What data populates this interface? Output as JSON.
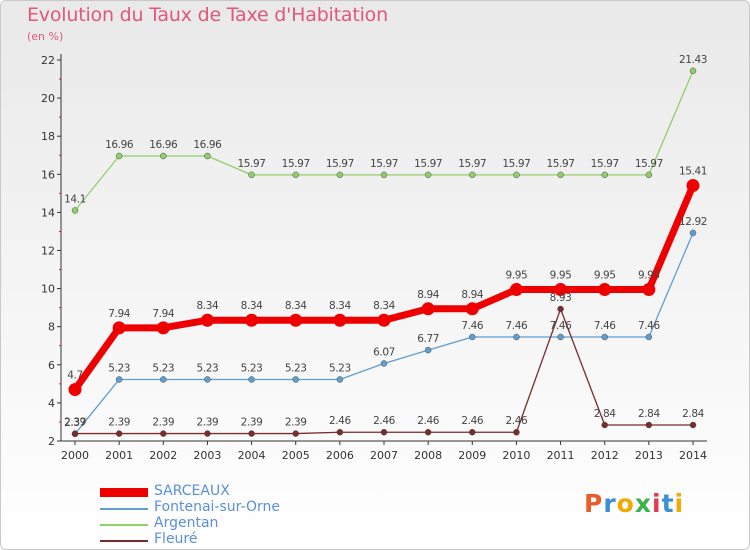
{
  "header": {
    "title": "Evolution du Taux de Taxe d'Habitation",
    "subtitle": "(en %)"
  },
  "logo": {
    "text": "Proxiti",
    "letter_colors": [
      "#e85d2a",
      "#3a8fd6",
      "#f2a900",
      "#3cb34a",
      "#e23b52",
      "#3a8fd6",
      "#f2a900"
    ]
  },
  "chart_data": {
    "type": "line",
    "title": "Evolution du Taux de Taxe d'Habitation",
    "ylabel": "(en %)",
    "ylim": [
      2,
      22
    ],
    "yticks": [
      2,
      4,
      6,
      8,
      10,
      12,
      14,
      16,
      18,
      20,
      22
    ],
    "grid": false,
    "legend": "bottom-left",
    "x": [
      "2000",
      "2001",
      "2002",
      "2003",
      "2004",
      "2005",
      "2006",
      "2007",
      "2008",
      "2009",
      "2010",
      "2011",
      "2012",
      "2013",
      "2014"
    ],
    "series": [
      {
        "name": "SARCEAUX",
        "color": "#ee0000",
        "values": [
          4.7,
          7.94,
          7.94,
          8.34,
          8.34,
          8.34,
          8.34,
          8.34,
          8.94,
          8.94,
          9.95,
          9.95,
          9.95,
          9.95,
          15.41
        ],
        "labels": [
          "4.7",
          "7.94",
          "7.94",
          "8.34",
          "8.34",
          "8.34",
          "8.34",
          "8.34",
          "8.94",
          "8.94",
          "9.95",
          "9.95",
          "9.95",
          "9.95",
          "15.41"
        ]
      },
      {
        "name": "Fontenai-sur-Orne",
        "color": "#5f9ed0",
        "values": [
          2.37,
          5.23,
          5.23,
          5.23,
          5.23,
          5.23,
          5.23,
          6.07,
          6.77,
          7.46,
          7.46,
          7.46,
          7.46,
          7.46,
          12.92
        ],
        "labels": [
          "2.37",
          "5.23",
          "5.23",
          "5.23",
          "5.23",
          "5.23",
          "5.23",
          "6.07",
          "6.77",
          "7.46",
          "7.46",
          "7.46",
          "7.46",
          "7.46",
          "12.92"
        ]
      },
      {
        "name": "Argentan",
        "color": "#8fd06a",
        "values": [
          14.1,
          16.96,
          16.96,
          16.96,
          15.97,
          15.97,
          15.97,
          15.97,
          15.97,
          15.97,
          15.97,
          15.97,
          15.97,
          15.97,
          21.43
        ],
        "labels": [
          "14.1",
          "16.96",
          "16.96",
          "16.96",
          "15.97",
          "15.97",
          "15.97",
          "15.97",
          "15.97",
          "15.97",
          "15.97",
          "15.97",
          "15.97",
          "15.97",
          "21.43"
        ]
      },
      {
        "name": "Fleuré",
        "color": "#7a2b2b",
        "values": [
          2.39,
          2.39,
          2.39,
          2.39,
          2.39,
          2.39,
          2.46,
          2.46,
          2.46,
          2.46,
          2.46,
          8.93,
          2.84,
          2.84,
          2.84
        ],
        "labels": [
          "2.39",
          "2.39",
          "2.39",
          "2.39",
          "2.39",
          "2.39",
          "2.46",
          "2.46",
          "2.46",
          "2.46",
          "2.46",
          "8.93",
          "2.84",
          "2.84",
          "2.84"
        ]
      }
    ]
  }
}
